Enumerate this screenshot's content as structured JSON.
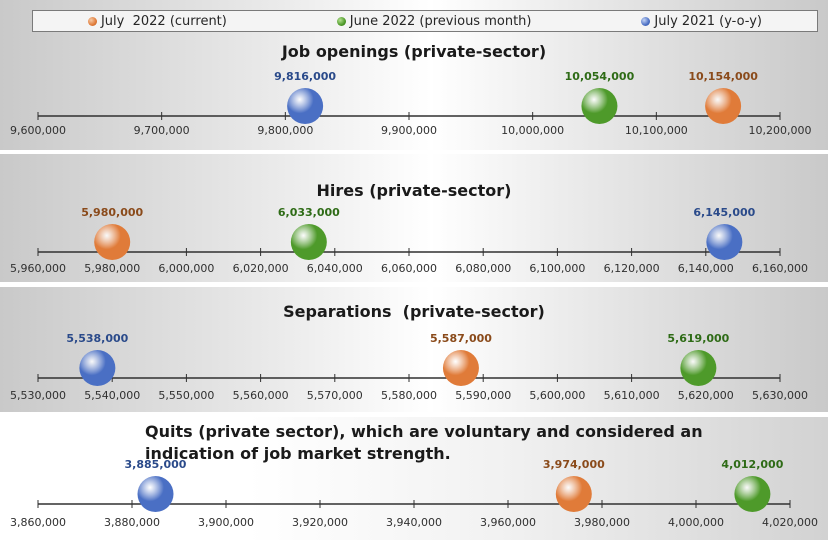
{
  "legend": [
    {
      "label": "July  2022 (current)",
      "color": "#e07b39"
    },
    {
      "label": "June 2022 (previous month)",
      "color": "#4e9a2a"
    },
    {
      "label": "July 2021 (y-o-y)",
      "color": "#4a6fc4"
    }
  ],
  "chart_data": [
    {
      "type": "scatter",
      "title": "Job openings (private-sector)",
      "xlim": [
        9600000,
        10200000
      ],
      "ticks": [
        "9,600,000",
        "9,700,000",
        "9,800,000",
        "9,900,000",
        "10,000,000",
        "10,100,000",
        "10,200,000"
      ],
      "points": [
        {
          "series": "July 2021 (y-o-y)",
          "value": 9816000,
          "label": "9,816,000",
          "color": "#4a6fc4",
          "label_color": "#2a4a8a"
        },
        {
          "series": "June 2022 (previous month)",
          "value": 10054000,
          "label": "10,054,000",
          "color": "#4e9a2a",
          "label_color": "#2e6b16"
        },
        {
          "series": "July  2022 (current)",
          "value": 10154000,
          "label": "10,154,000",
          "color": "#e07b39",
          "label_color": "#8a4a1a"
        }
      ]
    },
    {
      "type": "scatter",
      "title": "Hires (private-sector)",
      "xlim": [
        5960000,
        6160000
      ],
      "ticks": [
        "5,960,000",
        "5,980,000",
        "6,000,000",
        "6,020,000",
        "6,040,000",
        "6,060,000",
        "6,080,000",
        "6,100,000",
        "6,120,000",
        "6,140,000",
        "6,160,000"
      ],
      "points": [
        {
          "series": "July  2022 (current)",
          "value": 5980000,
          "label": "5,980,000",
          "color": "#e07b39",
          "label_color": "#8a4a1a"
        },
        {
          "series": "June 2022 (previous month)",
          "value": 6033000,
          "label": "6,033,000",
          "color": "#4e9a2a",
          "label_color": "#2e6b16"
        },
        {
          "series": "July 2021 (y-o-y)",
          "value": 6145000,
          "label": "6,145,000",
          "color": "#4a6fc4",
          "label_color": "#2a4a8a"
        }
      ]
    },
    {
      "type": "scatter",
      "title": "Separations  (private-sector)",
      "xlim": [
        5530000,
        5630000
      ],
      "ticks": [
        "5,530,000",
        "5,540,000",
        "5,550,000",
        "5,560,000",
        "5,570,000",
        "5,580,000",
        "5,590,000",
        "5,600,000",
        "5,610,000",
        "5,620,000",
        "5,630,000"
      ],
      "points": [
        {
          "series": "July 2021 (y-o-y)",
          "value": 5538000,
          "label": "5,538,000",
          "color": "#4a6fc4",
          "label_color": "#2a4a8a"
        },
        {
          "series": "July  2022 (current)",
          "value": 5587000,
          "label": "5,587,000",
          "color": "#e07b39",
          "label_color": "#8a4a1a"
        },
        {
          "series": "June 2022 (previous month)",
          "value": 5619000,
          "label": "5,619,000",
          "color": "#4e9a2a",
          "label_color": "#2e6b16"
        }
      ]
    },
    {
      "type": "scatter",
      "title": "Quits (private sector), which are voluntary and considered an indication of job market strength.",
      "xlim": [
        3860000,
        4020000
      ],
      "ticks": [
        "3,860,000",
        "3,880,000",
        "3,900,000",
        "3,920,000",
        "3,940,000",
        "3,960,000",
        "3,980,000",
        "4,000,000",
        "4,020,000"
      ],
      "points": [
        {
          "series": "July 2021 (y-o-y)",
          "value": 3885000,
          "label": "3,885,000",
          "color": "#4a6fc4",
          "label_color": "#2a4a8a"
        },
        {
          "series": "July  2022 (current)",
          "value": 3974000,
          "label": "3,974,000",
          "color": "#e07b39",
          "label_color": "#8a4a1a"
        },
        {
          "series": "June 2022 (previous month)",
          "value": 4012000,
          "label": "4,012,000",
          "color": "#4e9a2a",
          "label_color": "#2e6b16"
        }
      ]
    }
  ]
}
